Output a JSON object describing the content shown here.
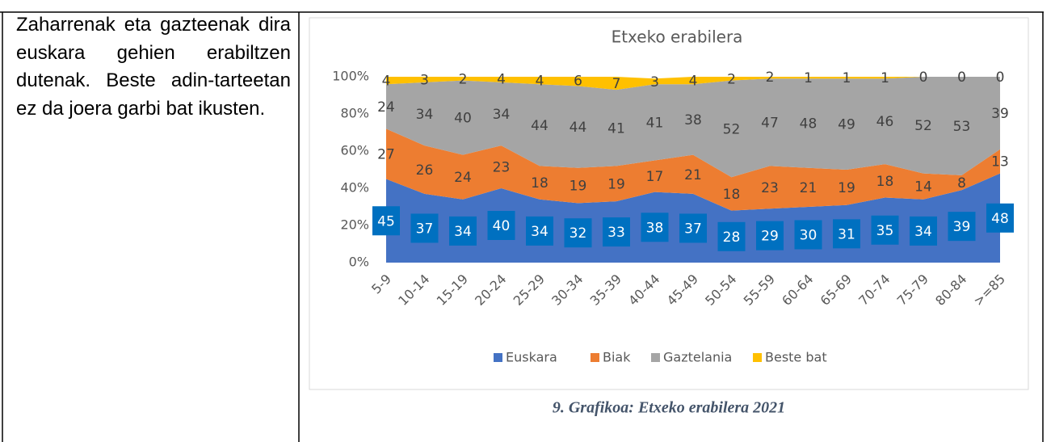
{
  "text": "Zaharrenak eta gazteenak dira euskara gehien erabiltzen dutenak. Beste adin-tarteetan ez da joera garbi bat ikusten.",
  "chart_data": {
    "type": "area",
    "title": "Etxeko erabilera",
    "categories": [
      "5-9",
      "10-14",
      "15-19",
      "20-24",
      "25-29",
      "30-34",
      "35-39",
      "40-44",
      "45-49",
      "50-54",
      "55-59",
      "60-64",
      "65-69",
      "70-74",
      "75-79",
      "80-84",
      ">=85"
    ],
    "series": [
      {
        "name": "Euskara",
        "color": "#4472c4",
        "values": [
          45,
          37,
          34,
          40,
          34,
          32,
          33,
          38,
          37,
          28,
          29,
          30,
          31,
          35,
          34,
          39,
          48
        ]
      },
      {
        "name": "Biak",
        "color": "#ed7d31",
        "values": [
          27,
          26,
          24,
          23,
          18,
          19,
          19,
          17,
          21,
          18,
          23,
          21,
          19,
          18,
          14,
          8,
          13
        ]
      },
      {
        "name": "Gaztelania",
        "color": "#a5a5a5",
        "values": [
          24,
          34,
          40,
          34,
          44,
          44,
          41,
          41,
          38,
          52,
          47,
          48,
          49,
          46,
          52,
          53,
          39
        ]
      },
      {
        "name": "Beste bat",
        "color": "#ffc000",
        "values": [
          4,
          3,
          2,
          4,
          4,
          6,
          7,
          3,
          4,
          2,
          2,
          1,
          1,
          1,
          0,
          0,
          0
        ]
      }
    ],
    "ylim": [
      0,
      100
    ],
    "yticks": [
      {
        "value": 0,
        "label": "0%"
      },
      {
        "value": 20,
        "label": "20%"
      },
      {
        "value": 40,
        "label": "40%"
      },
      {
        "value": 60,
        "label": "60%"
      },
      {
        "value": 80,
        "label": "80%"
      },
      {
        "value": 100,
        "label": "100%"
      }
    ],
    "stacked": true,
    "legend": "bottom"
  },
  "caption": "9. Grafikoa: Etxeko erabilera 2021"
}
